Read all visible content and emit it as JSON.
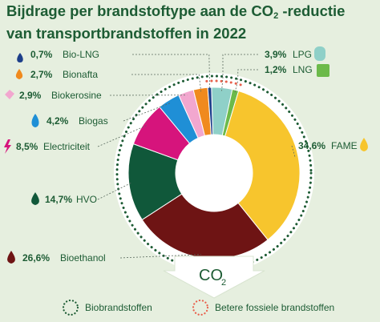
{
  "chart_data": {
    "type": "pie",
    "title_line1_prefix": "Bijdrage per brandstoftype aan de CO",
    "title_sub": "2",
    "title_line1_suffix": " -reductie",
    "title_line2": "van transportbrandstoffen in 2022",
    "slices": [
      {
        "label": "FAME",
        "value_text": "34,6%",
        "value": 34.6,
        "color": "#f7c52d",
        "group": "bio",
        "icon": "fame-drop-icon"
      },
      {
        "label": "Bioethanol",
        "value_text": "26,6%",
        "value": 26.6,
        "color": "#6e1414",
        "group": "bio",
        "icon": "bioethanol-drop-icon"
      },
      {
        "label": "HVO",
        "value_text": "14,7%",
        "value": 14.7,
        "color": "#10583a",
        "group": "bio",
        "icon": "hvo-drop-icon"
      },
      {
        "label": "Electriciteit",
        "value_text": "8,5%",
        "value": 8.5,
        "color": "#d6147c",
        "group": "bio",
        "icon": "lightning-icon"
      },
      {
        "label": "Biogas",
        "value_text": "4,2%",
        "value": 4.2,
        "color": "#1f8fd6",
        "group": "bio",
        "icon": "flame-icon"
      },
      {
        "label": "Biokerosine",
        "value_text": "2,9%",
        "value": 2.9,
        "color": "#f2a7cf",
        "group": "bio",
        "icon": "airplane-icon"
      },
      {
        "label": "Bionafta",
        "value_text": "2,7%",
        "value": 2.7,
        "color": "#f08a1e",
        "group": "bio",
        "icon": "bionafta-drop-icon"
      },
      {
        "label": "Bio-LNG",
        "value_text": "0,7%",
        "value": 0.7,
        "color": "#1d3f8a",
        "group": "bio",
        "icon": "bio-lng-flame-icon"
      },
      {
        "label": "LPG",
        "value_text": "3,9%",
        "value": 3.9,
        "color": "#8fd0c8",
        "group": "fossil",
        "icon": "gas-cylinder-icon"
      },
      {
        "label": "LNG",
        "value_text": "1,2%",
        "value": 1.2,
        "color": "#6cba4a",
        "group": "fossil",
        "icon": "lng-tank-icon"
      }
    ],
    "center_arrow_label": "CO",
    "center_arrow_sub": "2",
    "legend": [
      {
        "label": "Biobrandstoffen",
        "color": "#1d5c34"
      },
      {
        "label": "Betere fossiele brandstoffen",
        "color": "#e8604c"
      }
    ]
  }
}
